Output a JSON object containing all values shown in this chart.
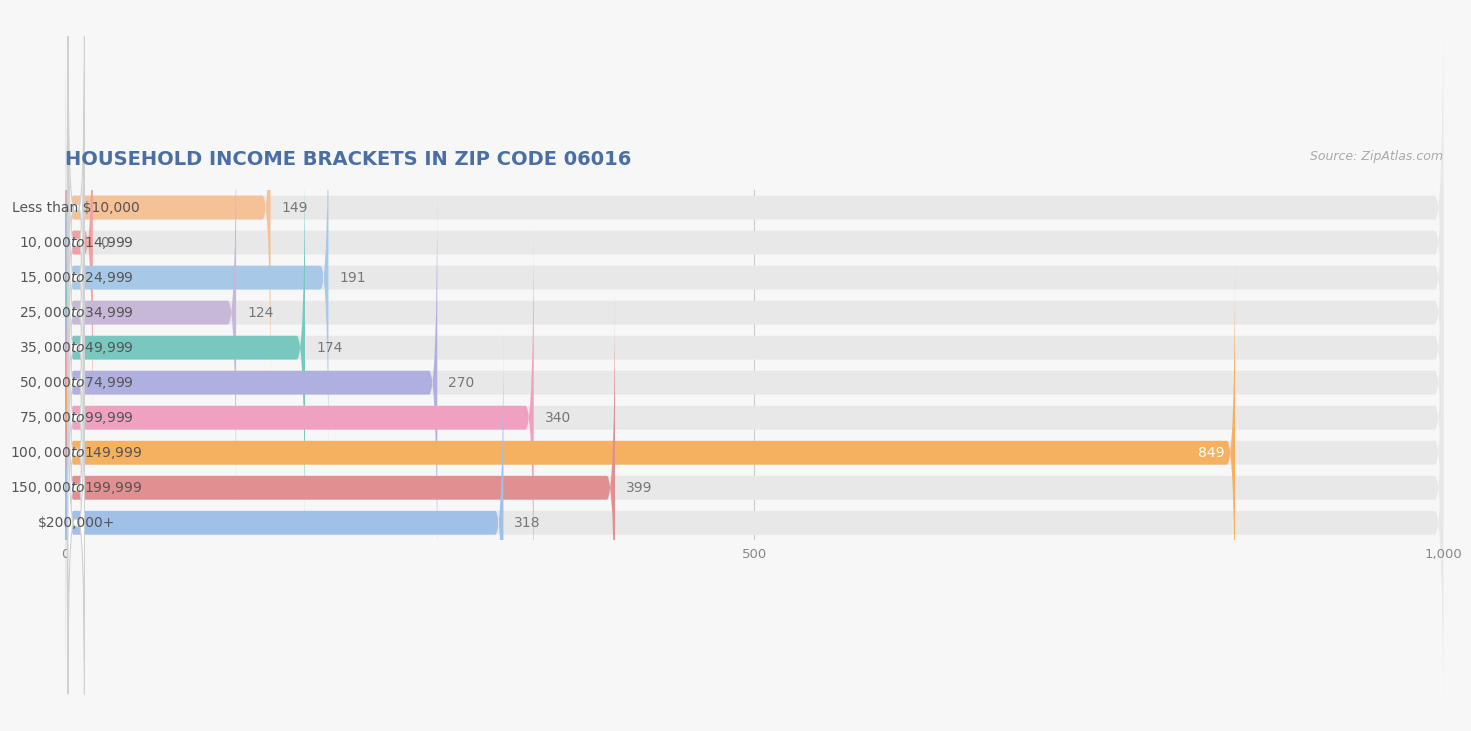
{
  "title": "HOUSEHOLD INCOME BRACKETS IN ZIP CODE 06016",
  "source": "Source: ZipAtlas.com",
  "categories": [
    "Less than $10,000",
    "$10,000 to $14,999",
    "$15,000 to $24,999",
    "$25,000 to $34,999",
    "$35,000 to $49,999",
    "$50,000 to $74,999",
    "$75,000 to $99,999",
    "$100,000 to $149,999",
    "$150,000 to $199,999",
    "$200,000+"
  ],
  "values": [
    149,
    0,
    191,
    124,
    174,
    270,
    340,
    849,
    399,
    318
  ],
  "bar_colors": [
    "#f5c196",
    "#f0a0a0",
    "#a8c8e8",
    "#c8b8d8",
    "#78c8c0",
    "#b0b0e0",
    "#f0a0c0",
    "#f5b060",
    "#e09090",
    "#a0c0e8"
  ],
  "value_inside_bar_indices": [
    7
  ],
  "xlim": [
    0,
    1000
  ],
  "xticks": [
    0,
    500,
    1000
  ],
  "background_color": "#f7f7f7",
  "bar_bg_color": "#e8e8e8",
  "title_color": "#4a6fa5",
  "title_fontsize": 14,
  "label_fontsize": 10,
  "value_fontsize": 10,
  "source_fontsize": 9,
  "bar_height": 0.68,
  "bar_gap": 1.0
}
